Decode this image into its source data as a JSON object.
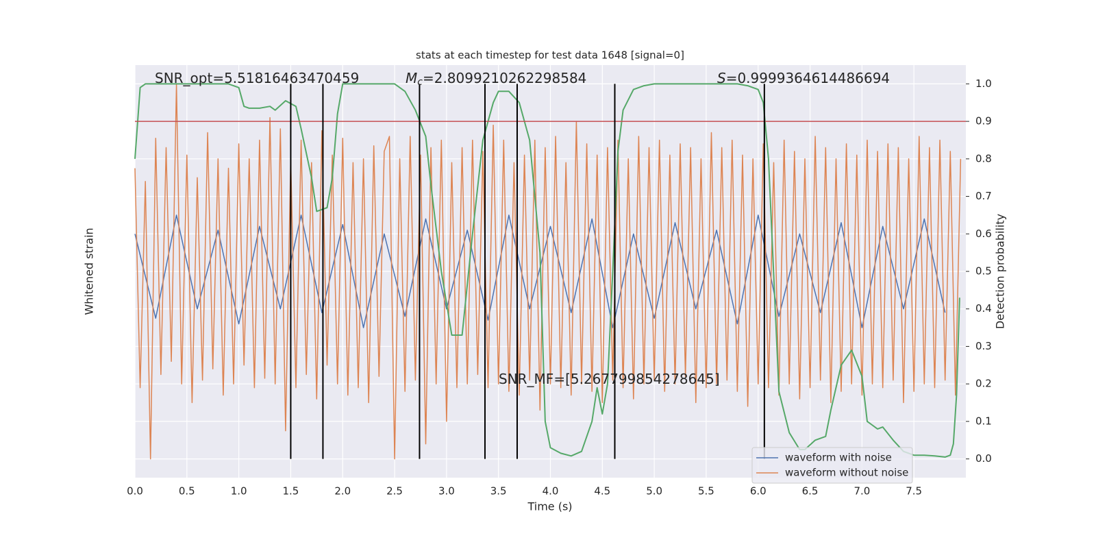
{
  "chart_data": {
    "type": "line",
    "title": "stats at each timestep for test data 1648 [signal=0]",
    "xlabel": "Time (s)",
    "ylabel": "Whitened strain",
    "y2label": "Detection probability",
    "xlim": [
      0,
      8.0
    ],
    "xticks": [
      {
        "value": 0,
        "label": "0.0"
      },
      0.5,
      {
        "value": 1,
        "label": "1.0"
      },
      1.5,
      {
        "value": 2,
        "label": "2.0"
      },
      2.5,
      {
        "value": 3,
        "label": "3.0"
      },
      3.5,
      {
        "value": 4,
        "label": "4.0"
      },
      4.5,
      {
        "value": 5,
        "label": "5.0"
      },
      5.5,
      {
        "value": 6,
        "label": "6.0"
      },
      6.5,
      {
        "value": 7,
        "label": "7.0"
      },
      7.5
    ],
    "ylim": [
      -1.1,
      1.1
    ],
    "y2lim": [
      -0.05,
      1.05
    ],
    "y2ticks": [
      {
        "value": 0,
        "label": "0.0"
      },
      0.1,
      0.2,
      0.3,
      0.4,
      0.5,
      0.6,
      0.7,
      0.8,
      0.9,
      {
        "value": 1,
        "label": "1.0"
      }
    ],
    "grid": true,
    "legend": "lower right",
    "series": [
      {
        "name": "waveform with noise",
        "color": "#4c72b0",
        "axis": "y",
        "x": [
          0,
          0.2,
          0.4,
          0.6,
          0.8,
          1.0,
          1.2,
          1.4,
          1.6,
          1.8,
          2.0,
          2.2,
          2.4,
          2.6,
          2.8,
          3.0,
          3.2,
          3.4,
          3.6,
          3.8,
          4.0,
          4.2,
          4.4,
          4.6,
          4.8,
          5.0,
          5.2,
          5.4,
          5.6,
          5.8,
          6.0,
          6.2,
          6.4,
          6.6,
          6.8,
          7.0,
          7.2,
          7.4,
          7.6,
          7.8
        ],
        "values": [
          0.2,
          -0.25,
          0.3,
          -0.2,
          0.22,
          -0.28,
          0.24,
          -0.2,
          0.3,
          -0.22,
          0.25,
          -0.3,
          0.2,
          -0.24,
          0.28,
          -0.2,
          0.22,
          -0.26,
          0.3,
          -0.2,
          0.24,
          -0.22,
          0.28,
          -0.3,
          0.2,
          -0.25,
          0.26,
          -0.2,
          0.22,
          -0.28,
          0.3,
          -0.24,
          0.2,
          -0.22,
          0.26,
          -0.3,
          0.24,
          -0.2,
          0.28,
          -0.22
        ]
      },
      {
        "name": "waveform without noise",
        "color": "#dd8452",
        "axis": "y",
        "x": [
          0,
          0.05,
          0.1,
          0.15,
          0.2,
          0.25,
          0.3,
          0.35,
          0.4,
          0.45,
          0.5,
          0.55,
          0.6,
          0.65,
          0.7,
          0.75,
          0.8,
          0.85,
          0.9,
          0.95,
          1.0,
          1.05,
          1.1,
          1.15,
          1.2,
          1.25,
          1.3,
          1.35,
          1.4,
          1.45,
          1.5,
          1.55,
          1.6,
          1.65,
          1.7,
          1.75,
          1.8,
          1.85,
          1.9,
          1.95,
          2.0,
          2.05,
          2.1,
          2.15,
          2.2,
          2.25,
          2.3,
          2.35,
          2.4,
          2.45,
          2.5,
          2.55,
          2.6,
          2.65,
          2.7,
          2.75,
          2.8,
          2.85,
          2.9,
          2.95,
          3.0,
          3.05,
          3.1,
          3.15,
          3.2,
          3.25,
          3.3,
          3.35,
          3.4,
          3.45,
          3.5,
          3.55,
          3.6,
          3.65,
          3.7,
          3.75,
          3.8,
          3.85,
          3.9,
          3.95,
          4.0,
          4.05,
          4.1,
          4.15,
          4.2,
          4.25,
          4.3,
          4.35,
          4.4,
          4.45,
          4.5,
          4.55,
          4.6,
          4.65,
          4.7,
          4.75,
          4.8,
          4.85,
          4.9,
          4.95,
          5.0,
          5.05,
          5.1,
          5.15,
          5.2,
          5.25,
          5.3,
          5.35,
          5.4,
          5.45,
          5.5,
          5.55,
          5.6,
          5.65,
          5.7,
          5.75,
          5.8,
          5.85,
          5.9,
          5.95,
          6.0,
          6.05,
          6.1,
          6.15,
          6.2,
          6.25,
          6.3,
          6.35,
          6.4,
          6.45,
          6.5,
          6.55,
          6.6,
          6.65,
          6.7,
          6.75,
          6.8,
          6.85,
          6.9,
          6.95,
          7.0,
          7.05,
          7.1,
          7.15,
          7.2,
          7.25,
          7.3,
          7.35,
          7.4,
          7.45,
          7.5,
          7.55,
          7.6,
          7.65,
          7.7,
          7.75,
          7.8,
          7.85,
          7.9,
          7.95
        ],
        "values": [
          0.55,
          -0.62,
          0.48,
          -1.0,
          0.71,
          -0.55,
          0.66,
          -0.48,
          1.0,
          -0.6,
          0.62,
          -0.7,
          0.5,
          -0.58,
          0.74,
          -0.52,
          0.6,
          -0.66,
          0.55,
          -0.6,
          0.68,
          -0.5,
          0.6,
          -0.62,
          0.7,
          -0.57,
          0.82,
          -0.6,
          0.76,
          -0.85,
          0.6,
          -0.62,
          0.7,
          -0.55,
          0.58,
          -0.68,
          0.75,
          -0.5,
          0.62,
          -0.6,
          0.71,
          -0.66,
          0.58,
          -0.62,
          0.6,
          -0.7,
          0.67,
          -0.56,
          0.64,
          0.72,
          -1.0,
          0.6,
          -0.64,
          0.72,
          -0.58,
          0.62,
          -0.92,
          0.66,
          -0.6,
          0.7,
          -0.8,
          0.58,
          -0.62,
          0.66,
          -0.6,
          0.7,
          -0.55,
          0.64,
          -0.62,
          0.78,
          -0.6,
          0.7,
          -0.64,
          0.58,
          -0.66,
          0.62,
          -0.58,
          0.7,
          -0.74,
          0.66,
          -0.6,
          0.72,
          -0.62,
          0.58,
          -0.66,
          0.8,
          -0.6,
          0.68,
          -0.64,
          0.62,
          -0.7,
          0.66,
          -0.58,
          0.7,
          -0.62,
          0.6,
          -0.68,
          0.72,
          -0.6,
          0.66,
          -0.58,
          0.7,
          -0.64,
          0.62,
          -0.6,
          0.68,
          -0.56,
          0.66,
          -0.7,
          0.6,
          -0.62,
          0.74,
          -0.6,
          0.66,
          -0.58,
          0.7,
          -0.64,
          0.62,
          -0.72,
          0.6,
          -0.6,
          0.68,
          -0.62,
          0.58,
          -0.66,
          0.7,
          -0.6,
          0.64,
          -0.68,
          0.6,
          -0.62,
          0.72,
          -0.58,
          0.66,
          -0.7,
          0.6,
          -0.64,
          0.68,
          -0.6,
          0.62,
          -0.66,
          0.7,
          -0.6,
          0.64,
          -0.62,
          0.68,
          -0.58,
          0.66,
          -0.7,
          0.6,
          -0.64,
          0.72,
          -0.6,
          0.66,
          -0.62,
          0.7,
          -0.58,
          0.64,
          -0.66,
          0.6
        ]
      },
      {
        "color": "#55a868",
        "axis": "y2",
        "x": [
          0,
          0.05,
          0.1,
          0.5,
          0.9,
          1.0,
          1.05,
          1.1,
          1.2,
          1.3,
          1.35,
          1.45,
          1.55,
          1.6,
          1.7,
          1.75,
          1.85,
          1.9,
          1.95,
          2.0,
          2.5,
          2.6,
          2.7,
          2.8,
          2.85,
          2.95,
          3.05,
          3.15,
          3.25,
          3.35,
          3.45,
          3.5,
          3.6,
          3.7,
          3.8,
          3.9,
          3.95,
          4.0,
          4.1,
          4.2,
          4.3,
          4.4,
          4.45,
          4.5,
          4.55,
          4.6,
          4.65,
          4.7,
          4.8,
          4.9,
          5.0,
          5.5,
          5.8,
          5.9,
          6.0,
          6.05,
          6.1,
          6.2,
          6.3,
          6.4,
          6.45,
          6.55,
          6.65,
          6.7,
          6.8,
          6.9,
          7.0,
          7.05,
          7.15,
          7.2,
          7.3,
          7.4,
          7.5,
          7.6,
          7.7,
          7.8,
          7.85,
          7.88,
          7.91,
          7.94
        ],
        "values": [
          0.8,
          0.99,
          1.0,
          1.0,
          1.0,
          0.99,
          0.94,
          0.935,
          0.935,
          0.94,
          0.93,
          0.955,
          0.94,
          0.88,
          0.75,
          0.66,
          0.67,
          0.75,
          0.92,
          1.0,
          1.0,
          0.98,
          0.93,
          0.86,
          0.73,
          0.5,
          0.33,
          0.33,
          0.6,
          0.85,
          0.95,
          0.98,
          0.98,
          0.95,
          0.85,
          0.55,
          0.1,
          0.03,
          0.015,
          0.008,
          0.02,
          0.1,
          0.19,
          0.12,
          0.2,
          0.5,
          0.82,
          0.93,
          0.985,
          0.995,
          1.0,
          1.0,
          1.0,
          0.995,
          0.985,
          0.95,
          0.8,
          0.18,
          0.07,
          0.025,
          0.025,
          0.05,
          0.06,
          0.13,
          0.25,
          0.29,
          0.22,
          0.1,
          0.08,
          0.085,
          0.05,
          0.02,
          0.01,
          0.01,
          0.008,
          0.005,
          0.01,
          0.04,
          0.17,
          0.43
        ]
      }
    ],
    "vlines": {
      "x": [
        1.5,
        1.81,
        2.74,
        3.37,
        3.68,
        4.62,
        6.06
      ],
      "ymin": 0,
      "ymax": 1,
      "axis": "y2",
      "color": "#000000"
    },
    "hline": {
      "y": 0.9,
      "axis": "y2",
      "color": "#c44e52"
    },
    "annotations": [
      {
        "text": "SNR_opt=5.51816463470459"
      },
      {
        "symbol": "M",
        "subscript": "c",
        "text": "=2.8099210262298584"
      },
      {
        "symbol": "S",
        "text": "=0.9999364614486694"
      },
      {
        "text": "SNR_MF=[5.267799854278645]"
      }
    ]
  }
}
